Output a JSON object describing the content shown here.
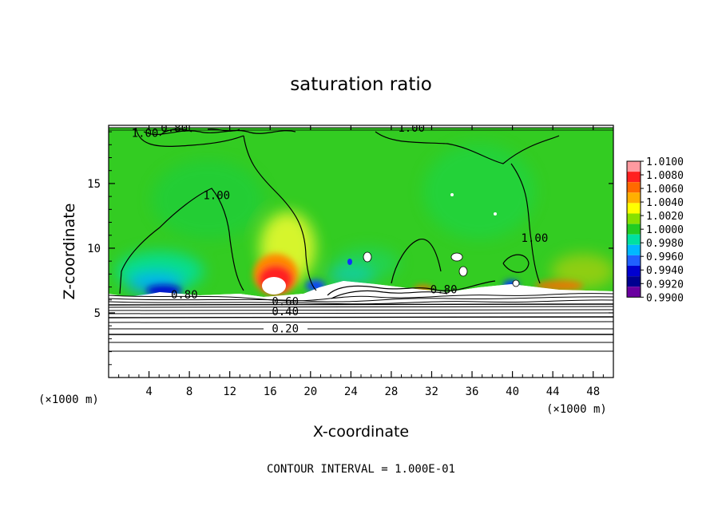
{
  "chart_data": {
    "type": "heatmap",
    "title": "saturation ratio",
    "xlabel": "X-coordinate",
    "ylabel": "Z-coordinate",
    "x_unit": "(×1000 m)",
    "xlim": [
      0,
      50
    ],
    "ylim": [
      0,
      19.5
    ],
    "x_ticks": [
      "4",
      "8",
      "12",
      "16",
      "20",
      "24",
      "28",
      "32",
      "36",
      "40",
      "44",
      "48"
    ],
    "y_ticks": [
      "5",
      "10",
      "15"
    ],
    "colorbar_labels": [
      "1.0100",
      "1.0080",
      "1.0060",
      "1.0040",
      "1.0020",
      "1.0000",
      "0.9980",
      "0.9960",
      "0.9940",
      "0.9920",
      "0.9900"
    ],
    "colorbar_colors": [
      "#ff9aa0",
      "#ff2020",
      "#ff6a00",
      "#ffb000",
      "#ffff00",
      "#88e000",
      "#22cc22",
      "#00e0a0",
      "#00b8ff",
      "#2060ff",
      "#0000d0",
      "#000090",
      "#6a00a0"
    ],
    "contour_labels": [
      {
        "text": "1.00",
        "x": 3.6,
        "y": 18.6
      },
      {
        "text": "0.80",
        "x": 6.5,
        "y": 19.0
      },
      {
        "text": "1.00",
        "x": 30.0,
        "y": 19.0
      },
      {
        "text": "1.00",
        "x": 10.7,
        "y": 13.8
      },
      {
        "text": "1.00",
        "x": 42.2,
        "y": 10.5
      },
      {
        "text": "0.80",
        "x": 7.5,
        "y": 6.1
      },
      {
        "text": "0.60",
        "x": 17.5,
        "y": 5.6
      },
      {
        "text": "0.80",
        "x": 33.2,
        "y": 6.5
      },
      {
        "text": "0.40",
        "x": 17.5,
        "y": 4.8
      },
      {
        "text": "0.20",
        "x": 17.5,
        "y": 3.5
      }
    ],
    "footer": "CONTOUR INTERVAL = 1.000E-01"
  }
}
